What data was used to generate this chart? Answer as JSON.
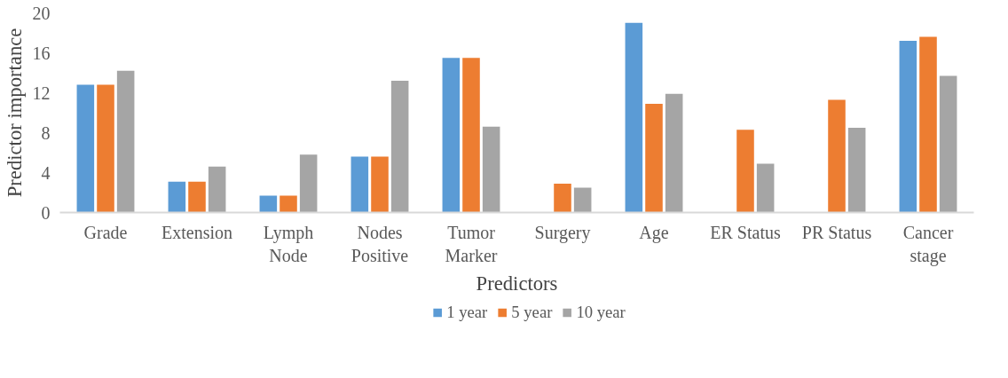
{
  "chart_data": {
    "type": "bar",
    "xlabel": "Predictors",
    "ylabel": "Predictor importance",
    "categories": [
      "Grade",
      "Extension",
      "Lymph Node",
      "Nodes Positive",
      "Tumor Marker",
      "Surgery",
      "Age",
      "ER Status",
      "PR Status",
      "Cancer stage"
    ],
    "series": [
      {
        "name": "1 year",
        "color": "#5b9bd5",
        "values": [
          12.8,
          3.1,
          1.7,
          5.6,
          15.5,
          0,
          19.0,
          0,
          0,
          17.2
        ]
      },
      {
        "name": "5 year",
        "color": "#ed7d31",
        "values": [
          12.8,
          3.1,
          1.7,
          5.6,
          15.5,
          2.9,
          10.9,
          8.3,
          11.3,
          17.6
        ]
      },
      {
        "name": "10 year",
        "color": "#a5a5a5",
        "values": [
          14.2,
          4.6,
          5.8,
          13.2,
          8.6,
          2.5,
          11.9,
          4.9,
          8.5,
          13.7
        ]
      }
    ],
    "ylim": [
      0,
      20
    ],
    "yticks": [
      0,
      4,
      8,
      12,
      16,
      20
    ],
    "grid": false,
    "legend": "bottom"
  }
}
